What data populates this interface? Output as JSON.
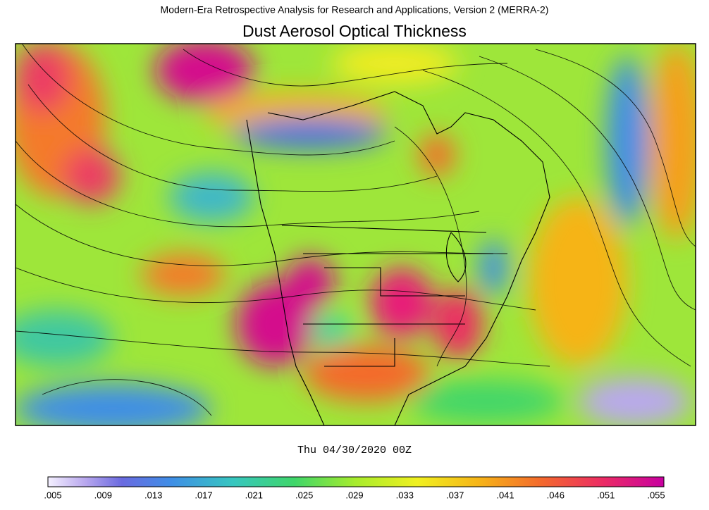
{
  "header": {
    "subtitle": "Modern-Era Retrospective Analysis for Research and Applications, Version 2 (MERRA-2)",
    "title": "Dust Aerosol Optical Thickness"
  },
  "timestamp": "Thu 04/30/2020 00Z",
  "colorbar": {
    "labels": [
      ".005",
      ".009",
      ".013",
      ".017",
      ".021",
      ".025",
      ".029",
      ".033",
      ".037",
      ".041",
      ".046",
      ".051",
      ".055"
    ]
  }
}
